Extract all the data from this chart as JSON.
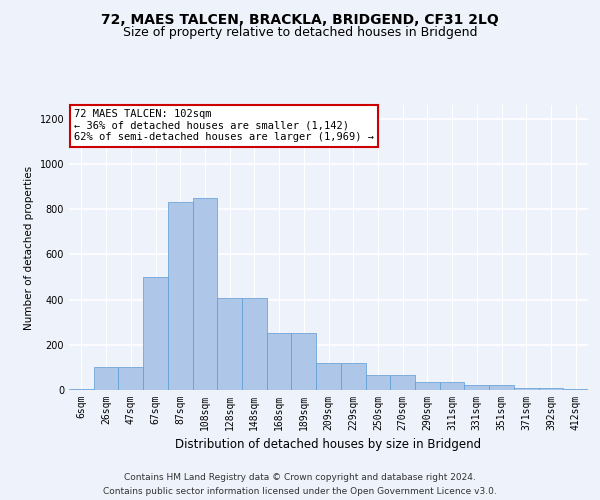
{
  "title": "72, MAES TALCEN, BRACKLA, BRIDGEND, CF31 2LQ",
  "subtitle": "Size of property relative to detached houses in Bridgend",
  "xlabel": "Distribution of detached houses by size in Bridgend",
  "ylabel": "Number of detached properties",
  "bar_color": "#aec6e8",
  "bar_edge_color": "#5b9bd5",
  "annotation_text": "72 MAES TALCEN: 102sqm\n← 36% of detached houses are smaller (1,142)\n62% of semi-detached houses are larger (1,969) →",
  "annotation_box_color": "#ffffff",
  "annotation_box_edge_color": "#cc0000",
  "footer_line1": "Contains HM Land Registry data © Crown copyright and database right 2024.",
  "footer_line2": "Contains public sector information licensed under the Open Government Licence v3.0.",
  "categories": [
    "6sqm",
    "26sqm",
    "47sqm",
    "67sqm",
    "87sqm",
    "108sqm",
    "128sqm",
    "148sqm",
    "168sqm",
    "189sqm",
    "209sqm",
    "229sqm",
    "250sqm",
    "270sqm",
    "290sqm",
    "311sqm",
    "331sqm",
    "351sqm",
    "371sqm",
    "392sqm",
    "412sqm"
  ],
  "values": [
    5,
    100,
    100,
    500,
    830,
    850,
    405,
    405,
    250,
    250,
    120,
    120,
    65,
    65,
    35,
    35,
    20,
    20,
    10,
    10,
    5
  ],
  "ylim": [
    0,
    1260
  ],
  "yticks": [
    0,
    200,
    400,
    600,
    800,
    1000,
    1200
  ],
  "background_color": "#eef2fa",
  "plot_bg_color": "#eef2fa",
  "grid_color": "#ffffff",
  "title_fontsize": 10,
  "subtitle_fontsize": 9,
  "xlabel_fontsize": 8.5,
  "ylabel_fontsize": 7.5,
  "tick_fontsize": 7,
  "footer_fontsize": 6.5,
  "annot_fontsize": 7.5
}
